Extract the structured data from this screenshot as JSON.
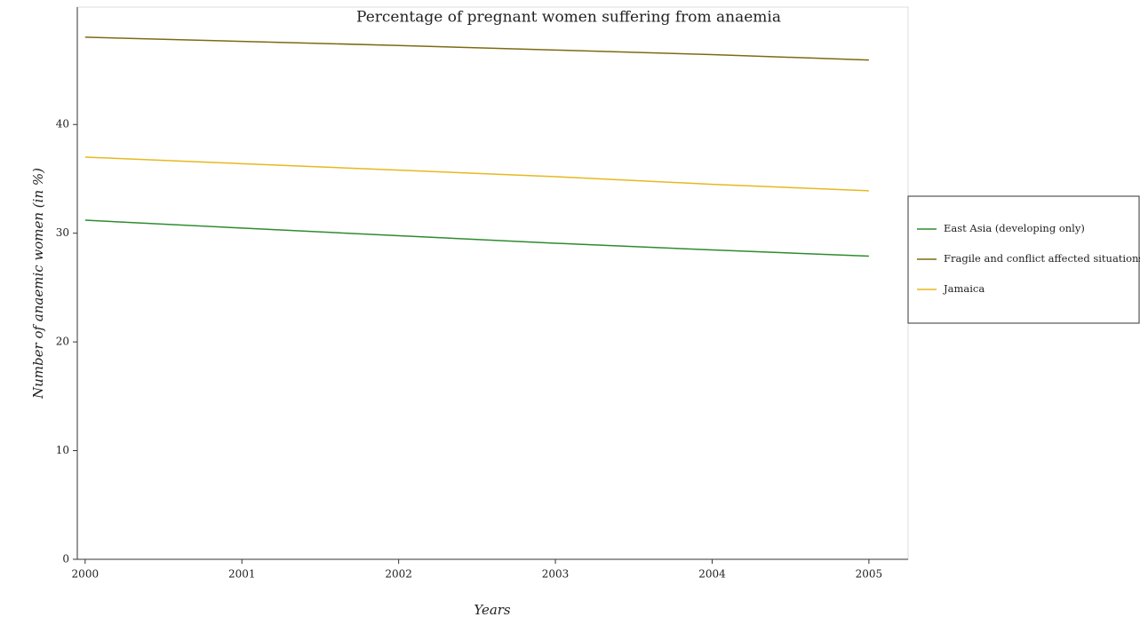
{
  "chart_data": {
    "type": "line",
    "title": "Percentage of pregnant women suffering from anaemia",
    "x_label": "Years",
    "y_label": "Number of anaemic women (in %)",
    "x": [
      2000,
      2001,
      2002,
      2003,
      2004,
      2005
    ],
    "series": [
      {
        "name": "East Asia (developing only)",
        "color": "#2e8b2e",
        "values": [
          31.2,
          30.47,
          29.77,
          29.08,
          28.46,
          27.89
        ]
      },
      {
        "name": "Fragile and conflict affected situations",
        "color": "#7d6a12",
        "values": [
          48.03,
          47.65,
          47.27,
          46.85,
          46.43,
          45.93
        ]
      },
      {
        "name": "Jamaica",
        "color": "#e6b820",
        "values": [
          37.0,
          36.4,
          35.8,
          35.2,
          34.5,
          33.9
        ]
      }
    ],
    "xlim": [
      1999.95,
      2005.25
    ],
    "xticks": [
      2000,
      2001,
      2002,
      2003,
      2004,
      2005
    ],
    "ylim": [
      0,
      50.8
    ],
    "yticks": [
      0,
      10,
      20,
      30,
      40
    ],
    "legend": "right"
  }
}
